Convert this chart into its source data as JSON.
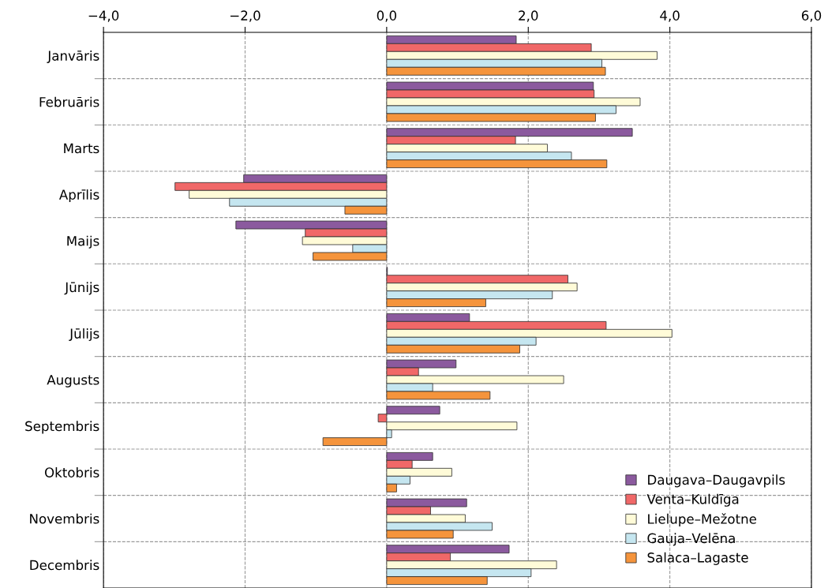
{
  "chart_data": {
    "type": "bar",
    "orientation": "horizontal",
    "categories": [
      "Janvāris",
      "Februāris",
      "Marts",
      "Aprīlis",
      "Maijs",
      "Jūnijs",
      "Jūlijs",
      "Augusts",
      "Septembris",
      "Oktobris",
      "Novembris",
      "Decembris"
    ],
    "series": [
      {
        "name": "Daugava–Daugavpils",
        "color": "#8b5a9e",
        "values": [
          1.83,
          2.92,
          3.47,
          -2.02,
          -2.13,
          0.01,
          1.17,
          0.98,
          0.75,
          0.65,
          1.13,
          1.73
        ]
      },
      {
        "name": "Venta–Kuldīga",
        "color": "#f06868",
        "values": [
          2.89,
          2.93,
          1.82,
          -2.99,
          -1.15,
          2.56,
          3.1,
          0.45,
          -0.12,
          0.36,
          0.62,
          0.9
        ]
      },
      {
        "name": "Lielupe–Mežotne",
        "color": "#fffbd8",
        "values": [
          3.82,
          3.58,
          2.27,
          -2.79,
          -1.19,
          2.69,
          4.03,
          2.5,
          1.84,
          0.92,
          1.11,
          2.4
        ]
      },
      {
        "name": "Gauja–Velēna",
        "color": "#c5e6f0",
        "values": [
          3.04,
          3.24,
          2.61,
          -2.22,
          -0.48,
          2.34,
          2.11,
          0.65,
          0.07,
          0.33,
          1.49,
          2.04
        ]
      },
      {
        "name": "Salaca–Lagaste",
        "color": "#f5943c",
        "values": [
          3.09,
          2.95,
          3.11,
          -0.59,
          -1.04,
          1.4,
          1.88,
          1.46,
          -0.9,
          0.14,
          0.94,
          1.42
        ]
      }
    ],
    "xlim": [
      -4,
      6
    ],
    "xticks": [
      {
        "value": -4,
        "label": "−4,0"
      },
      {
        "value": -2,
        "label": "−2,0"
      },
      {
        "value": 0,
        "label": "0,0"
      },
      {
        "value": 2,
        "label": "2,0"
      },
      {
        "value": 4,
        "label": "4,0"
      },
      {
        "value": 6,
        "label": "6,0"
      }
    ],
    "grid": true,
    "legend": "bottom right"
  }
}
